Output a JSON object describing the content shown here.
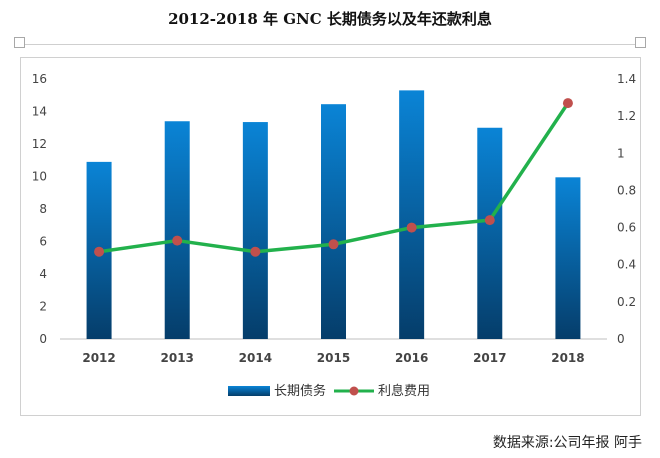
{
  "title": "2012-2018 年 GNC 长期债务以及年还款利息",
  "source": "数据来源:公司年报  阿手",
  "chart_data": {
    "type": "bar+line",
    "categories": [
      "2012",
      "2013",
      "2014",
      "2015",
      "2016",
      "2017",
      "2018"
    ],
    "series": [
      {
        "name": "长期债务",
        "type": "bar",
        "axis": "left",
        "values": [
          10.9,
          13.4,
          13.35,
          14.45,
          15.3,
          13.0,
          9.95
        ],
        "color_top": "#0a84d6",
        "color_bottom": "#053d6a"
      },
      {
        "name": "利息费用",
        "type": "line",
        "axis": "right",
        "values": [
          0.47,
          0.53,
          0.47,
          0.51,
          0.6,
          0.64,
          1.27
        ],
        "color": "#22b14c",
        "marker_color": "#c0504d"
      }
    ],
    "y_left": {
      "min": 0,
      "max": 16,
      "step": 2,
      "ticks": [
        "0",
        "2",
        "4",
        "6",
        "8",
        "10",
        "12",
        "14",
        "16"
      ]
    },
    "y_right": {
      "min": 0,
      "max": 1.4,
      "step": 0.2,
      "ticks": [
        "0",
        "0.2",
        "0.4",
        "0.6",
        "0.8",
        "1",
        "1.2",
        "1.4"
      ]
    },
    "grid": false,
    "legend_position": "bottom"
  }
}
